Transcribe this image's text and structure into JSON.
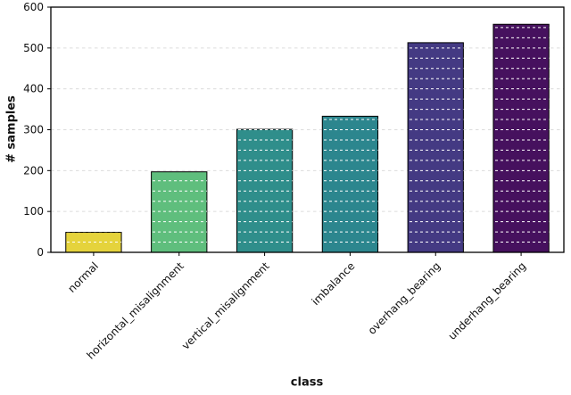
{
  "figure": {
    "background": "#ffffff",
    "plot_background": "#ffffff"
  },
  "chart_data": {
    "type": "bar",
    "title": "",
    "xlabel": "class",
    "ylabel": "# samples",
    "categories": [
      "normal",
      "horizontal_misalignment",
      "vertical_misalignment",
      "imbalance",
      "overhang_bearing",
      "underhang_bearing"
    ],
    "values": [
      49,
      197,
      301,
      333,
      513,
      558
    ],
    "bar_colors": [
      "#e5d33c",
      "#5fbe7d",
      "#2f8e8b",
      "#2c868e",
      "#443a83",
      "#46115e"
    ],
    "bar_edge_color": "#000000",
    "ylim": [
      0,
      600
    ],
    "yticks": [
      0,
      100,
      200,
      300,
      400,
      500,
      600
    ],
    "y_minor_step": 25,
    "grid": true,
    "grid_style": "dashed",
    "grid_color": "#dcdcdc",
    "grid_color_over_bars": "#ffffff",
    "legend_position": "none",
    "x_tick_rotation_deg": 45
  }
}
